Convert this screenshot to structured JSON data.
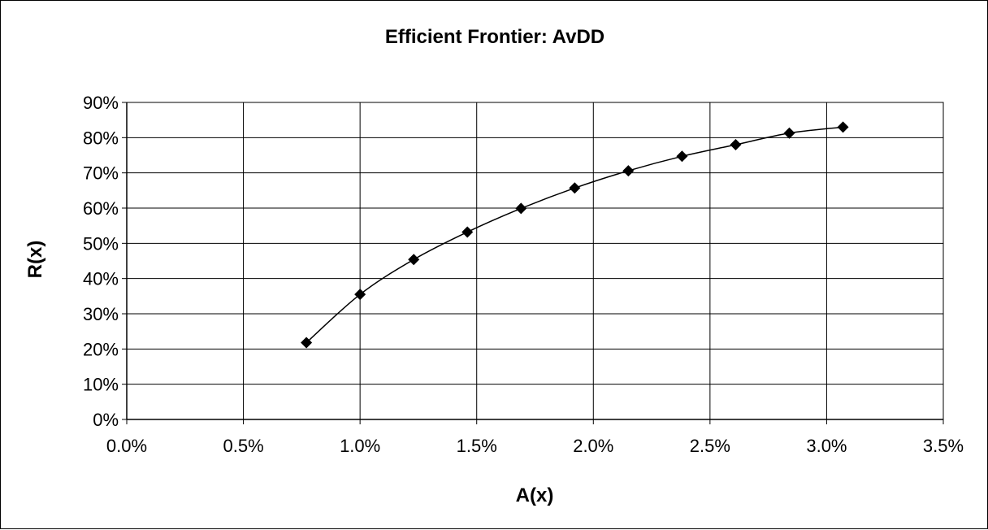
{
  "chart_data": {
    "type": "scatter",
    "title": "Efficient Frontier: AvDD",
    "xlabel": "A(x)",
    "ylabel": "R(x)",
    "xlim": [
      0,
      0.035
    ],
    "ylim": [
      0,
      0.9
    ],
    "x_ticks": [
      "0.0%",
      "0.5%",
      "1.0%",
      "1.5%",
      "2.0%",
      "2.5%",
      "3.0%",
      "3.5%"
    ],
    "y_ticks": [
      "0%",
      "10%",
      "20%",
      "30%",
      "40%",
      "50%",
      "60%",
      "70%",
      "80%",
      "90%"
    ],
    "grid": true,
    "legend": "none",
    "marker": "diamond",
    "line": "smoothed",
    "colors": {
      "series": "#000000",
      "grid": "#000000",
      "background": "#ffffff"
    },
    "series": [
      {
        "x": [
          0.0077,
          0.01,
          0.0123,
          0.0146,
          0.0169,
          0.0192,
          0.0215,
          0.0238,
          0.0261,
          0.0284,
          0.0307
        ],
        "y": [
          0.218,
          0.355,
          0.454,
          0.532,
          0.599,
          0.657,
          0.706,
          0.747,
          0.78,
          0.813,
          0.83
        ]
      }
    ]
  }
}
